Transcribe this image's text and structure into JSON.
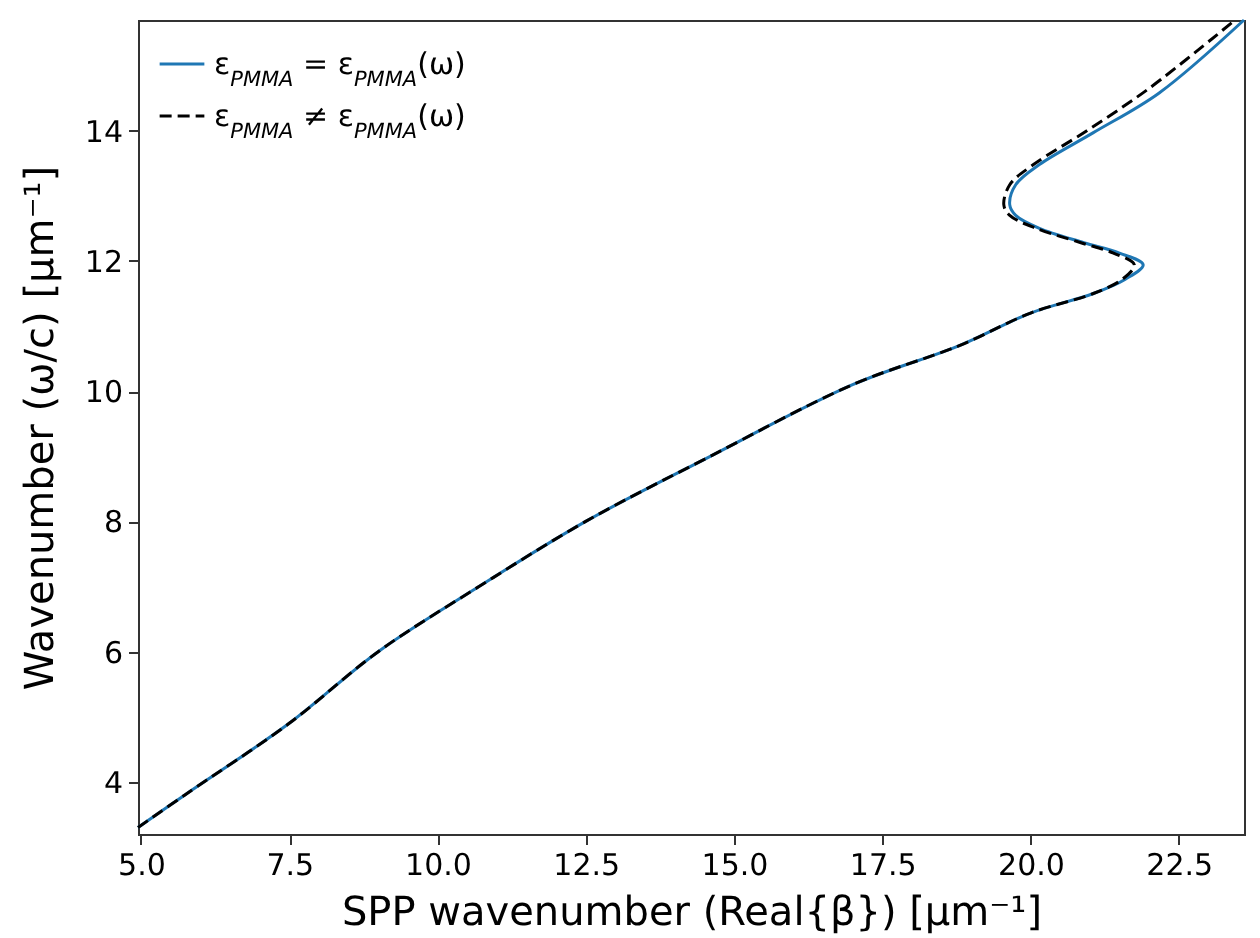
{
  "chart_data": {
    "type": "line",
    "xlabel": "SPP wavenumber (Real{β}) [μm⁻¹]",
    "ylabel": "Wavenumber (ω/c) [μm⁻¹]",
    "xlim": [
      4.95,
      23.6
    ],
    "ylim": [
      3.2,
      15.7
    ],
    "xticks": [
      {
        "value": 5,
        "label": "5.0"
      },
      7.5,
      {
        "value": 10,
        "label": "10.0"
      },
      12.5,
      {
        "value": 15,
        "label": "15.0"
      },
      17.5,
      {
        "value": 20,
        "label": "20.0"
      },
      22.5
    ],
    "yticks": [
      4,
      6,
      8,
      10,
      12,
      14
    ],
    "grid": false,
    "legend": "top left",
    "series": [
      {
        "name": "ε$_{PMMA}$ = ε$_{PMMA}$(ω)",
        "color": "#1f77b4",
        "line_style": "solid",
        "x": [
          4.95,
          5.74,
          7.5,
          9.0,
          10.7,
          12.5,
          14.6,
          17.0,
          18.8,
          20.0,
          21.06,
          21.6,
          21.9,
          21.5,
          20.9,
          20.15,
          19.75,
          19.65,
          19.75,
          20.15,
          21.06,
          22.17,
          23.6
        ],
        "values": [
          3.3,
          3.8,
          4.9,
          6.0,
          7.0,
          8.0,
          9.0,
          10.1,
          10.7,
          11.2,
          11.5,
          11.72,
          11.94,
          12.12,
          12.28,
          12.5,
          12.7,
          12.86,
          13.17,
          13.48,
          13.97,
          14.58,
          15.7
        ]
      },
      {
        "name": "ε$_{PMMA}$ ≠ ε$_{PMMA}$(ω)",
        "color": "#000000",
        "line_style": "dashed",
        "x": [
          4.95,
          5.74,
          7.5,
          9.0,
          10.7,
          12.5,
          14.6,
          17.0,
          18.8,
          20.0,
          21.06,
          21.55,
          21.75,
          21.4,
          20.85,
          20.1,
          19.65,
          19.55,
          19.65,
          20.05,
          20.95,
          22.0,
          23.45
        ],
        "values": [
          3.3,
          3.8,
          4.9,
          6.0,
          7.0,
          8.0,
          9.0,
          10.1,
          10.7,
          11.2,
          11.5,
          11.72,
          11.94,
          12.12,
          12.28,
          12.5,
          12.7,
          12.86,
          13.17,
          13.48,
          14.0,
          14.65,
          15.7
        ]
      }
    ]
  }
}
